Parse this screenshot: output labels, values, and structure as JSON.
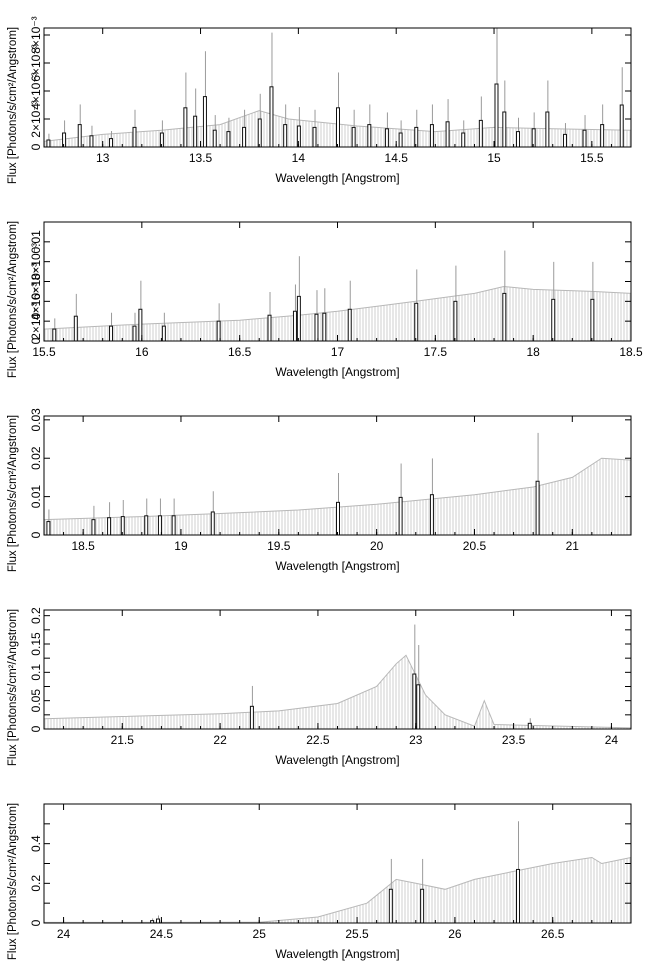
{
  "chart_data": [
    {
      "type": "line",
      "xlabel": "Wavelength [Angstrom]",
      "ylabel": "Flux [Photons/s/cm²/Angstrom]",
      "xlim": [
        12.7,
        15.7
      ],
      "ylim": [
        0,
        0.0085
      ],
      "xticks": [
        13,
        13.5,
        14,
        14.5,
        15,
        15.5
      ],
      "xtick_labels": [
        "13",
        "13.5",
        "14",
        "14.5",
        "15",
        "15.5"
      ],
      "yticks": [
        0,
        0.002,
        0.004,
        0.006,
        0.008
      ],
      "ytick_labels": [
        "0",
        "2×10⁻³",
        "4×10⁻³",
        "6×10⁻³",
        "8×10⁻³"
      ],
      "model": [
        [
          12.7,
          0.0004
        ],
        [
          13.0,
          0.0009
        ],
        [
          13.3,
          0.0012
        ],
        [
          13.6,
          0.0016
        ],
        [
          13.8,
          0.0026
        ],
        [
          13.95,
          0.002
        ],
        [
          14.3,
          0.0015
        ],
        [
          14.7,
          0.0011
        ],
        [
          15.0,
          0.0014
        ],
        [
          15.3,
          0.0013
        ],
        [
          15.7,
          0.0012
        ]
      ],
      "data": [
        [
          12.72,
          0.0005
        ],
        [
          12.8,
          0.001
        ],
        [
          12.88,
          0.0016
        ],
        [
          12.94,
          0.0008
        ],
        [
          13.04,
          0.0006
        ],
        [
          13.16,
          0.0014
        ],
        [
          13.3,
          0.001
        ],
        [
          13.42,
          0.0028
        ],
        [
          13.47,
          0.0022
        ],
        [
          13.52,
          0.0036
        ],
        [
          13.57,
          0.0012
        ],
        [
          13.64,
          0.0011
        ],
        [
          13.72,
          0.0014
        ],
        [
          13.8,
          0.002
        ],
        [
          13.86,
          0.0043
        ],
        [
          13.93,
          0.0016
        ],
        [
          14.0,
          0.0015
        ],
        [
          14.08,
          0.0014
        ],
        [
          14.2,
          0.0028
        ],
        [
          14.28,
          0.0014
        ],
        [
          14.36,
          0.0016
        ],
        [
          14.45,
          0.0013
        ],
        [
          14.52,
          0.001
        ],
        [
          14.6,
          0.0014
        ],
        [
          14.68,
          0.0016
        ],
        [
          14.76,
          0.0018
        ],
        [
          14.84,
          0.001
        ],
        [
          14.93,
          0.0019
        ],
        [
          15.01,
          0.0045
        ],
        [
          15.05,
          0.0025
        ],
        [
          15.12,
          0.0011
        ],
        [
          15.2,
          0.0013
        ],
        [
          15.27,
          0.0025
        ],
        [
          15.36,
          0.0009
        ],
        [
          15.46,
          0.0012
        ],
        [
          15.55,
          0.0016
        ],
        [
          15.65,
          0.003
        ]
      ]
    },
    {
      "type": "line",
      "xlabel": "Wavelength [Angstrom]",
      "ylabel": "Flux [Photons/s/cm²/Angstrom]",
      "xlim": [
        15.5,
        18.5
      ],
      "ylim": [
        0,
        0.012
      ],
      "xticks": [
        15.5,
        16,
        16.5,
        17,
        17.5,
        18,
        18.5
      ],
      "xtick_labels": [
        "15.5",
        "16",
        "16.5",
        "17",
        "17.5",
        "18",
        "18.5"
      ],
      "yticks": [
        0,
        0.002,
        0.004,
        0.006,
        0.008,
        0.01
      ],
      "ytick_labels": [
        "0",
        "2×10⁻³",
        "4×10⁻³",
        "6×10⁻³",
        "8×10⁻³",
        "0.01"
      ],
      "model": [
        [
          15.5,
          0.0012
        ],
        [
          16.0,
          0.0017
        ],
        [
          16.5,
          0.0021
        ],
        [
          16.8,
          0.0026
        ],
        [
          17.0,
          0.003
        ],
        [
          17.4,
          0.004
        ],
        [
          17.7,
          0.0048
        ],
        [
          17.85,
          0.0055
        ],
        [
          18.0,
          0.0052
        ],
        [
          18.3,
          0.005
        ],
        [
          18.5,
          0.0048
        ]
      ],
      "data": [
        [
          15.55,
          0.0012
        ],
        [
          15.66,
          0.0025
        ],
        [
          15.84,
          0.0015
        ],
        [
          15.96,
          0.0015
        ],
        [
          15.99,
          0.0032
        ],
        [
          16.11,
          0.0015
        ],
        [
          16.39,
          0.002
        ],
        [
          16.65,
          0.0026
        ],
        [
          16.78,
          0.003
        ],
        [
          16.8,
          0.0045
        ],
        [
          16.89,
          0.0027
        ],
        [
          16.93,
          0.0028
        ],
        [
          17.06,
          0.0032
        ],
        [
          17.4,
          0.0038
        ],
        [
          17.6,
          0.004
        ],
        [
          17.85,
          0.0048
        ],
        [
          18.1,
          0.0042
        ],
        [
          18.3,
          0.0042
        ]
      ]
    },
    {
      "type": "line",
      "xlabel": "Wavelength [Angstrom]",
      "ylabel": "Flux [Photons/s/cm²/Angstrom]",
      "xlim": [
        18.3,
        21.3
      ],
      "ylim": [
        0,
        0.031
      ],
      "xticks": [
        18.5,
        19,
        19.5,
        20,
        20.5,
        21
      ],
      "xtick_labels": [
        "18.5",
        "19",
        "19.5",
        "20",
        "20.5",
        "21"
      ],
      "yticks": [
        0,
        0.01,
        0.02,
        0.03
      ],
      "ytick_labels": [
        "0",
        "0.01",
        "0.02",
        "0.03"
      ],
      "model": [
        [
          18.3,
          0.004
        ],
        [
          18.8,
          0.0048
        ],
        [
          19.2,
          0.0056
        ],
        [
          19.6,
          0.0065
        ],
        [
          20.0,
          0.008
        ],
        [
          20.5,
          0.0105
        ],
        [
          20.8,
          0.0125
        ],
        [
          21.0,
          0.015
        ],
        [
          21.15,
          0.02
        ],
        [
          21.3,
          0.0195
        ]
      ],
      "data": [
        [
          18.32,
          0.0035
        ],
        [
          18.55,
          0.004
        ],
        [
          18.63,
          0.0045
        ],
        [
          18.7,
          0.0048
        ],
        [
          18.82,
          0.005
        ],
        [
          18.89,
          0.005
        ],
        [
          18.96,
          0.005
        ],
        [
          19.16,
          0.006
        ],
        [
          19.8,
          0.0085
        ],
        [
          20.12,
          0.0098
        ],
        [
          20.28,
          0.0105
        ],
        [
          20.82,
          0.014
        ]
      ]
    },
    {
      "type": "line",
      "xlabel": "Wavelength [Angstrom]",
      "ylabel": "Flux [Photons/s/cm²/Angstrom]",
      "xlim": [
        21.1,
        24.1
      ],
      "ylim": [
        0,
        0.21
      ],
      "xticks": [
        21.5,
        22,
        22.5,
        23,
        23.5,
        24
      ],
      "xtick_labels": [
        "21.5",
        "22",
        "22.5",
        "23",
        "23.5",
        "24"
      ],
      "yticks": [
        0,
        0.025,
        0.05,
        0.075,
        0.1,
        0.125,
        0.15,
        0.175,
        0.2
      ],
      "ytick_labels": [
        "0",
        "",
        "0.05",
        "",
        "0.1",
        "",
        "0.15",
        "",
        "0.2"
      ],
      "model": [
        [
          21.1,
          0.018
        ],
        [
          21.5,
          0.022
        ],
        [
          22.0,
          0.027
        ],
        [
          22.3,
          0.032
        ],
        [
          22.6,
          0.045
        ],
        [
          22.8,
          0.075
        ],
        [
          22.9,
          0.115
        ],
        [
          22.95,
          0.13
        ],
        [
          23.0,
          0.095
        ],
        [
          23.05,
          0.06
        ],
        [
          23.15,
          0.025
        ],
        [
          23.3,
          0.005
        ],
        [
          23.35,
          0.05
        ],
        [
          23.4,
          0.008
        ],
        [
          24.1,
          0.002
        ]
      ],
      "data": [
        [
          22.16,
          0.04
        ],
        [
          22.99,
          0.097
        ],
        [
          23.01,
          0.078
        ],
        [
          23.58,
          0.01
        ]
      ]
    },
    {
      "type": "line",
      "xlabel": "Wavelength [Angstrom]",
      "ylabel": "Flux [Photons/s/cm²/Angstrom]",
      "xlim": [
        23.9,
        26.9
      ],
      "ylim": [
        0,
        0.6
      ],
      "xticks": [
        24,
        24.5,
        25,
        25.5,
        26,
        26.5
      ],
      "xtick_labels": [
        "24",
        "24.5",
        "25",
        "25.5",
        "26",
        "26.5"
      ],
      "yticks": [
        0,
        0.1,
        0.2,
        0.3,
        0.4,
        0.5
      ],
      "ytick_labels": [
        "0",
        "",
        "0.2",
        "",
        "0.4",
        ""
      ],
      "model": [
        [
          23.9,
          0.003
        ],
        [
          25.0,
          0.004
        ],
        [
          25.3,
          0.03
        ],
        [
          25.55,
          0.1
        ],
        [
          25.7,
          0.22
        ],
        [
          25.8,
          0.2
        ],
        [
          25.95,
          0.17
        ],
        [
          26.1,
          0.22
        ],
        [
          26.3,
          0.26
        ],
        [
          26.5,
          0.3
        ],
        [
          26.7,
          0.33
        ],
        [
          26.75,
          0.3
        ],
        [
          26.9,
          0.33
        ]
      ],
      "data": [
        [
          24.45,
          0.012
        ],
        [
          24.48,
          0.02
        ],
        [
          25.67,
          0.17
        ],
        [
          25.83,
          0.17
        ],
        [
          26.32,
          0.27
        ]
      ]
    }
  ]
}
